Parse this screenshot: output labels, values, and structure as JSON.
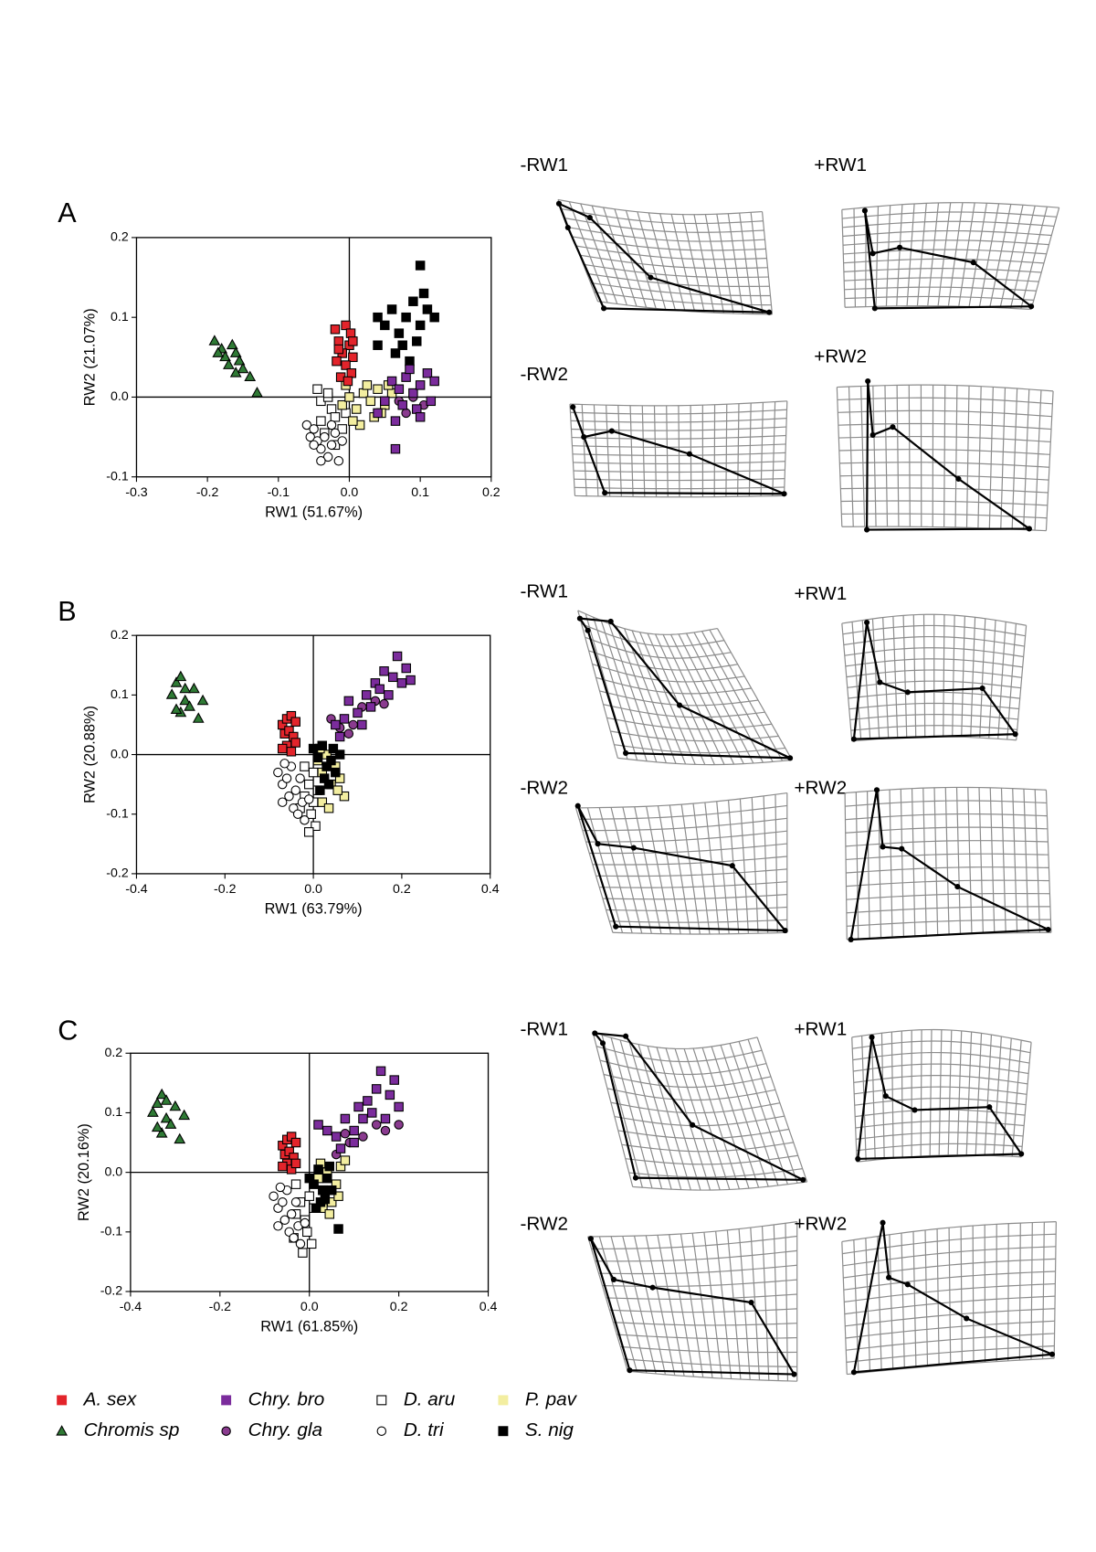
{
  "chart_data": [
    {
      "type": "scatter",
      "panel": "A",
      "xlabel": "RW1 (51.67%)",
      "ylabel": "RW2 (21.07%)",
      "zero_lines": true,
      "xlim": [
        -0.3,
        0.2
      ],
      "xticks": [
        -0.3,
        -0.2,
        -0.1,
        {
          "value": 0,
          "label": "0.0"
        },
        0.1,
        0.2
      ],
      "ylim": [
        -0.1,
        0.2
      ],
      "yticks": [
        -0.1,
        {
          "value": 0,
          "label": "0.0"
        },
        0.1,
        0.2
      ],
      "shape_labels": [
        "-RW1",
        "+RW1",
        "-RW2",
        "+RW2"
      ],
      "series": [
        {
          "name": "A. sex",
          "color": "#e3242b",
          "marker": "square",
          "x": [
            -0.02,
            -0.005,
            0.002,
            -0.015,
            0,
            -0.01,
            0.005,
            -0.018,
            -0.005,
            0.003,
            -0.012,
            -0.002,
            -0.015,
            0.005
          ],
          "values": [
            0.085,
            0.09,
            0.08,
            0.07,
            0.065,
            0.055,
            0.05,
            0.045,
            0.04,
            0.03,
            0.025,
            0.02,
            0.06,
            0.07
          ]
        },
        {
          "name": "Chromis sp",
          "color": "#2f7a35",
          "marker": "triangle",
          "x": [
            -0.19,
            -0.18,
            -0.175,
            -0.165,
            -0.16,
            -0.155,
            -0.17,
            -0.15,
            -0.14,
            -0.13,
            -0.185,
            -0.16
          ],
          "values": [
            0.07,
            0.06,
            0.05,
            0.065,
            0.055,
            0.045,
            0.04,
            0.035,
            0.025,
            0.005,
            0.055,
            0.03
          ]
        },
        {
          "name": "Chry. bro",
          "color": "#7b2c9c",
          "marker": "square",
          "x": [
            0.06,
            0.07,
            0.08,
            0.09,
            0.1,
            0.11,
            0.12,
            0.075,
            0.095,
            0.05,
            0.085,
            0.065,
            0.115,
            0.065,
            0.1,
            0.04
          ],
          "values": [
            0.02,
            0.01,
            0.025,
            0.005,
            0.015,
            0.03,
            0.02,
            -0.01,
            -0.015,
            -0.005,
            0.035,
            -0.03,
            -0.005,
            -0.065,
            -0.025,
            -0.02
          ]
        },
        {
          "name": "Chry. gla",
          "color": "#8a3b8f",
          "marker": "circle",
          "x": [
            0.07,
            0.09,
            0.105,
            0.08
          ],
          "values": [
            -0.005,
            0,
            -0.01,
            -0.02
          ]
        },
        {
          "name": "D. aru",
          "color": "#ffffff",
          "marker": "square",
          "x": [
            -0.045,
            -0.04,
            -0.03,
            -0.025,
            -0.04,
            -0.02,
            -0.035,
            -0.01,
            -0.02,
            -0.005,
            -0.03
          ],
          "values": [
            0.01,
            -0.005,
            0,
            -0.015,
            -0.03,
            -0.025,
            -0.045,
            -0.04,
            -0.06,
            -0.02,
            0.005
          ]
        },
        {
          "name": "D. tri",
          "color": "#ffffff",
          "marker": "circle",
          "x": [
            -0.06,
            -0.055,
            -0.05,
            -0.045,
            -0.04,
            -0.035,
            -0.03,
            -0.025,
            -0.02,
            -0.015,
            -0.04,
            -0.05,
            -0.01,
            -0.025
          ],
          "values": [
            -0.035,
            -0.05,
            -0.04,
            -0.055,
            -0.065,
            -0.05,
            -0.075,
            -0.06,
            -0.045,
            -0.08,
            -0.08,
            -0.06,
            -0.055,
            -0.035
          ]
        },
        {
          "name": "P. pav",
          "color": "#f3eea0",
          "marker": "square",
          "x": [
            -0.01,
            0,
            0.01,
            0.02,
            0.03,
            0.04,
            0.05,
            0.06,
            0.035,
            0.015,
            0.025,
            0.045,
            0.005,
            -0.005,
            0.055
          ],
          "values": [
            -0.01,
            0,
            -0.015,
            0.005,
            -0.005,
            0.01,
            -0.01,
            0.005,
            -0.025,
            -0.035,
            0.015,
            -0.02,
            -0.03,
            0.015,
            0.015
          ]
        },
        {
          "name": "S. nig",
          "color": "#000000",
          "marker": "square",
          "x": [
            0.04,
            0.05,
            0.06,
            0.07,
            0.08,
            0.09,
            0.1,
            0.11,
            0.12,
            0.075,
            0.095,
            0.065,
            0.085,
            0.105,
            0.1,
            0.04
          ],
          "values": [
            0.1,
            0.09,
            0.11,
            0.08,
            0.1,
            0.12,
            0.09,
            0.11,
            0.1,
            0.065,
            0.07,
            0.055,
            0.045,
            0.13,
            0.165,
            0.065
          ]
        }
      ]
    },
    {
      "type": "scatter",
      "panel": "B",
      "xlabel": "RW1 (63.79%)",
      "ylabel": "RW2 (20.88%)",
      "zero_lines": true,
      "xlim": [
        -0.4,
        0.4
      ],
      "xticks": [
        -0.4,
        -0.2,
        {
          "value": 0,
          "label": "0.0"
        },
        0.2,
        0.4
      ],
      "ylim": [
        -0.2,
        0.2
      ],
      "yticks": [
        -0.2,
        -0.1,
        {
          "value": 0,
          "label": "0.0"
        },
        0.1,
        0.2
      ],
      "shape_labels": [
        "-RW1",
        "+RW1",
        "-RW2",
        "+RW2"
      ],
      "series": [
        {
          "name": "A. sex",
          "color": "#e3242b",
          "marker": "square",
          "x": [
            -0.07,
            -0.06,
            -0.05,
            -0.04,
            -0.065,
            -0.055,
            -0.045,
            -0.06,
            -0.05,
            -0.04,
            -0.07
          ],
          "values": [
            0.05,
            0.06,
            0.065,
            0.055,
            0.035,
            0.04,
            0.03,
            0.015,
            0.005,
            0.02,
            0.01
          ]
        },
        {
          "name": "Chromis sp",
          "color": "#2f7a35",
          "marker": "triangle",
          "x": [
            -0.32,
            -0.31,
            -0.3,
            -0.29,
            -0.3,
            -0.28,
            -0.27,
            -0.25,
            -0.26,
            -0.31,
            -0.29
          ],
          "values": [
            0.1,
            0.12,
            0.13,
            0.09,
            0.07,
            0.08,
            0.11,
            0.09,
            0.06,
            0.075,
            0.11
          ]
        },
        {
          "name": "Chry. bro",
          "color": "#7b2c9c",
          "marker": "square",
          "x": [
            0.05,
            0.07,
            0.08,
            0.1,
            0.12,
            0.13,
            0.14,
            0.15,
            0.16,
            0.18,
            0.19,
            0.2,
            0.21,
            0.22,
            0.06,
            0.11,
            0.17
          ],
          "values": [
            0.05,
            0.06,
            0.09,
            0.07,
            0.1,
            0.08,
            0.12,
            0.11,
            0.14,
            0.13,
            0.165,
            0.12,
            0.145,
            0.125,
            0.03,
            0.05,
            0.1
          ]
        },
        {
          "name": "Chry. gla",
          "color": "#8a3b8f",
          "marker": "circle",
          "x": [
            0.06,
            0.09,
            0.11,
            0.14,
            0.16,
            0.08,
            0.04
          ],
          "values": [
            0.045,
            0.05,
            0.08,
            0.09,
            0.085,
            0.035,
            0.06
          ]
        },
        {
          "name": "D. aru",
          "color": "#ffffff",
          "marker": "square",
          "x": [
            -0.02,
            -0.01,
            0,
            -0.005,
            0.005,
            -0.01,
            0,
            -0.02,
            0.01,
            -0.03
          ],
          "values": [
            -0.02,
            -0.05,
            -0.08,
            -0.1,
            -0.12,
            -0.13,
            -0.03,
            -0.07,
            -0.06,
            -0.09
          ]
        },
        {
          "name": "D. tri",
          "color": "#ffffff",
          "marker": "circle",
          "x": [
            -0.08,
            -0.07,
            -0.06,
            -0.055,
            -0.05,
            -0.045,
            -0.04,
            -0.035,
            -0.03,
            -0.025,
            -0.02,
            -0.07,
            -0.065,
            -0.01
          ],
          "values": [
            -0.03,
            -0.05,
            -0.04,
            -0.07,
            -0.02,
            -0.09,
            -0.06,
            -0.1,
            -0.04,
            -0.08,
            -0.11,
            -0.08,
            -0.015,
            -0.075
          ]
        },
        {
          "name": "P. pav",
          "color": "#f3eea0",
          "marker": "square",
          "x": [
            0.01,
            0.02,
            0.03,
            0.04,
            0.05,
            0.06,
            0.07,
            0.02,
            0.035,
            0.015,
            0.055
          ],
          "values": [
            -0.01,
            -0.03,
            0,
            -0.05,
            -0.02,
            -0.04,
            -0.07,
            -0.08,
            -0.09,
            0.01,
            -0.06
          ]
        },
        {
          "name": "S. nig",
          "color": "#000000",
          "marker": "square",
          "x": [
            0,
            0.01,
            0.02,
            0.03,
            0.04,
            0.045,
            0.025,
            0.015,
            0.035,
            0.05,
            0.06
          ],
          "values": [
            0.01,
            -0.005,
            0.015,
            -0.02,
            -0.01,
            0.01,
            -0.04,
            -0.06,
            -0.05,
            -0.03,
            0
          ]
        }
      ]
    },
    {
      "type": "scatter",
      "panel": "C",
      "xlabel": "RW1 (61.85%)",
      "ylabel": "RW2 (20.16%)",
      "zero_lines": true,
      "xlim": [
        -0.4,
        0.4
      ],
      "xticks": [
        -0.4,
        -0.2,
        {
          "value": 0,
          "label": "0.0"
        },
        0.2,
        0.4
      ],
      "ylim": [
        -0.2,
        0.2
      ],
      "yticks": [
        -0.2,
        -0.1,
        {
          "value": 0,
          "label": "0.0"
        },
        0.1,
        0.2
      ],
      "shape_labels": [
        "-RW1",
        "+RW1",
        "-RW2",
        "+RW2"
      ],
      "series": [
        {
          "name": "A. sex",
          "color": "#e3242b",
          "marker": "square",
          "x": [
            -0.06,
            -0.05,
            -0.04,
            -0.03,
            -0.055,
            -0.045,
            -0.035,
            -0.05,
            -0.04,
            -0.03,
            -0.06
          ],
          "values": [
            0.045,
            0.055,
            0.06,
            0.05,
            0.03,
            0.035,
            0.025,
            0.015,
            0.005,
            0.015,
            0.01
          ]
        },
        {
          "name": "Chromis sp",
          "color": "#2f7a35",
          "marker": "triangle",
          "x": [
            -0.35,
            -0.34,
            -0.33,
            -0.32,
            -0.33,
            -0.31,
            -0.3,
            -0.28,
            -0.29,
            -0.34,
            -0.32
          ],
          "values": [
            0.1,
            0.115,
            0.13,
            0.09,
            0.065,
            0.08,
            0.11,
            0.095,
            0.055,
            0.075,
            0.12
          ]
        },
        {
          "name": "Chry. bro",
          "color": "#7b2c9c",
          "marker": "square",
          "x": [
            0.02,
            0.04,
            0.06,
            0.08,
            0.1,
            0.11,
            0.12,
            0.13,
            0.14,
            0.15,
            0.16,
            0.18,
            0.19,
            0.2,
            0.07,
            0.1,
            0.17
          ],
          "values": [
            0.08,
            0.07,
            0.06,
            0.09,
            0.07,
            0.11,
            0.09,
            0.12,
            0.1,
            0.14,
            0.17,
            0.13,
            0.155,
            0.11,
            0.04,
            0.05,
            0.09
          ]
        },
        {
          "name": "Chry. gla",
          "color": "#8a3b8f",
          "marker": "circle",
          "x": [
            0.06,
            0.09,
            0.12,
            0.15,
            0.17,
            0.2,
            0.08
          ],
          "values": [
            0.03,
            0.05,
            0.06,
            0.08,
            0.07,
            0.08,
            0.065
          ]
        },
        {
          "name": "D. aru",
          "color": "#ffffff",
          "marker": "square",
          "x": [
            -0.03,
            -0.02,
            -0.01,
            -0.005,
            0.005,
            -0.015,
            0,
            -0.03,
            0.01,
            -0.035
          ],
          "values": [
            -0.02,
            -0.05,
            -0.08,
            -0.1,
            -0.12,
            -0.135,
            -0.04,
            -0.07,
            -0.06,
            -0.11
          ]
        },
        {
          "name": "D. tri",
          "color": "#ffffff",
          "marker": "circle",
          "x": [
            -0.08,
            -0.07,
            -0.06,
            -0.055,
            -0.05,
            -0.045,
            -0.04,
            -0.035,
            -0.03,
            -0.025,
            -0.02,
            -0.07,
            -0.065,
            -0.01
          ],
          "values": [
            -0.04,
            -0.06,
            -0.05,
            -0.08,
            -0.03,
            -0.1,
            -0.07,
            -0.11,
            -0.05,
            -0.09,
            -0.12,
            -0.09,
            -0.025,
            -0.085
          ]
        },
        {
          "name": "P. pav",
          "color": "#f3eea0",
          "marker": "square",
          "x": [
            0.02,
            0.03,
            0.04,
            0.05,
            0.06,
            0.07,
            0.08,
            0.03,
            0.045,
            0.025,
            0.065
          ],
          "values": [
            -0.01,
            -0.03,
            0,
            -0.05,
            -0.02,
            0.01,
            0.02,
            -0.06,
            -0.07,
            0.015,
            -0.04
          ]
        },
        {
          "name": "S. nig",
          "color": "#000000",
          "marker": "square",
          "x": [
            0,
            0.01,
            0.02,
            0.03,
            0.04,
            0.045,
            0.025,
            0.015,
            0.035,
            0.05,
            0.065
          ],
          "values": [
            -0.01,
            -0.02,
            0.005,
            -0.03,
            -0.01,
            0.01,
            -0.05,
            -0.06,
            -0.045,
            -0.03,
            -0.095
          ]
        }
      ]
    }
  ]
}
